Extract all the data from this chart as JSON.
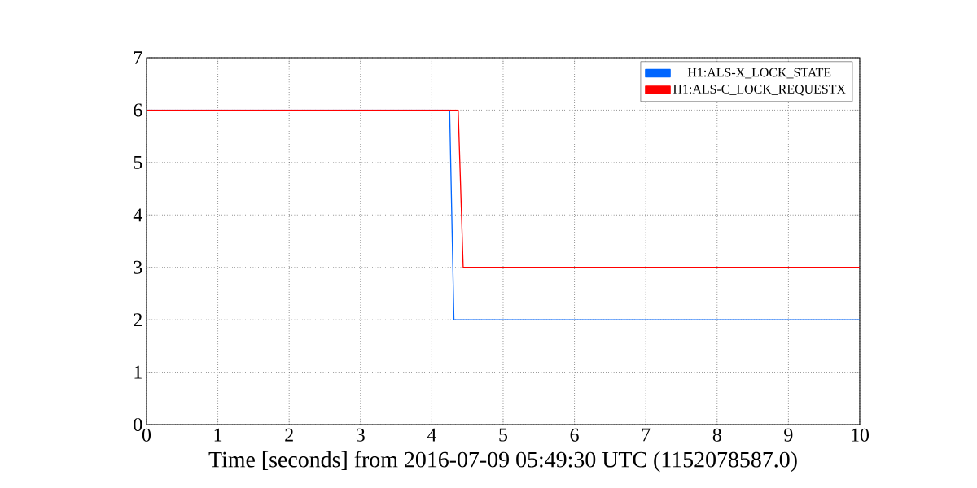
{
  "chart_data": {
    "type": "line",
    "xlabel": "Time [seconds] from 2016-07-09 05:49:30 UTC (1152078587.0)",
    "xlim": [
      0,
      10
    ],
    "ylim": [
      0,
      7
    ],
    "xticks": [
      0,
      1,
      2,
      3,
      4,
      5,
      6,
      7,
      8,
      9,
      10
    ],
    "yticks": [
      0,
      1,
      2,
      3,
      4,
      5,
      6,
      7
    ],
    "grid": true,
    "legend": "top right",
    "line_style": "solid",
    "marker": "none",
    "series": [
      {
        "name": "H1:ALS-X_LOCK_STATE",
        "color": "#0066ff",
        "x": [
          0,
          4.25,
          4.31,
          10
        ],
        "values": [
          6,
          6,
          2,
          2
        ]
      },
      {
        "name": "H1:ALS-C_LOCK_REQUESTX",
        "color": "#ff0000",
        "x": [
          0,
          4.37,
          4.44,
          10
        ],
        "values": [
          6,
          6,
          3,
          3
        ]
      }
    ]
  }
}
